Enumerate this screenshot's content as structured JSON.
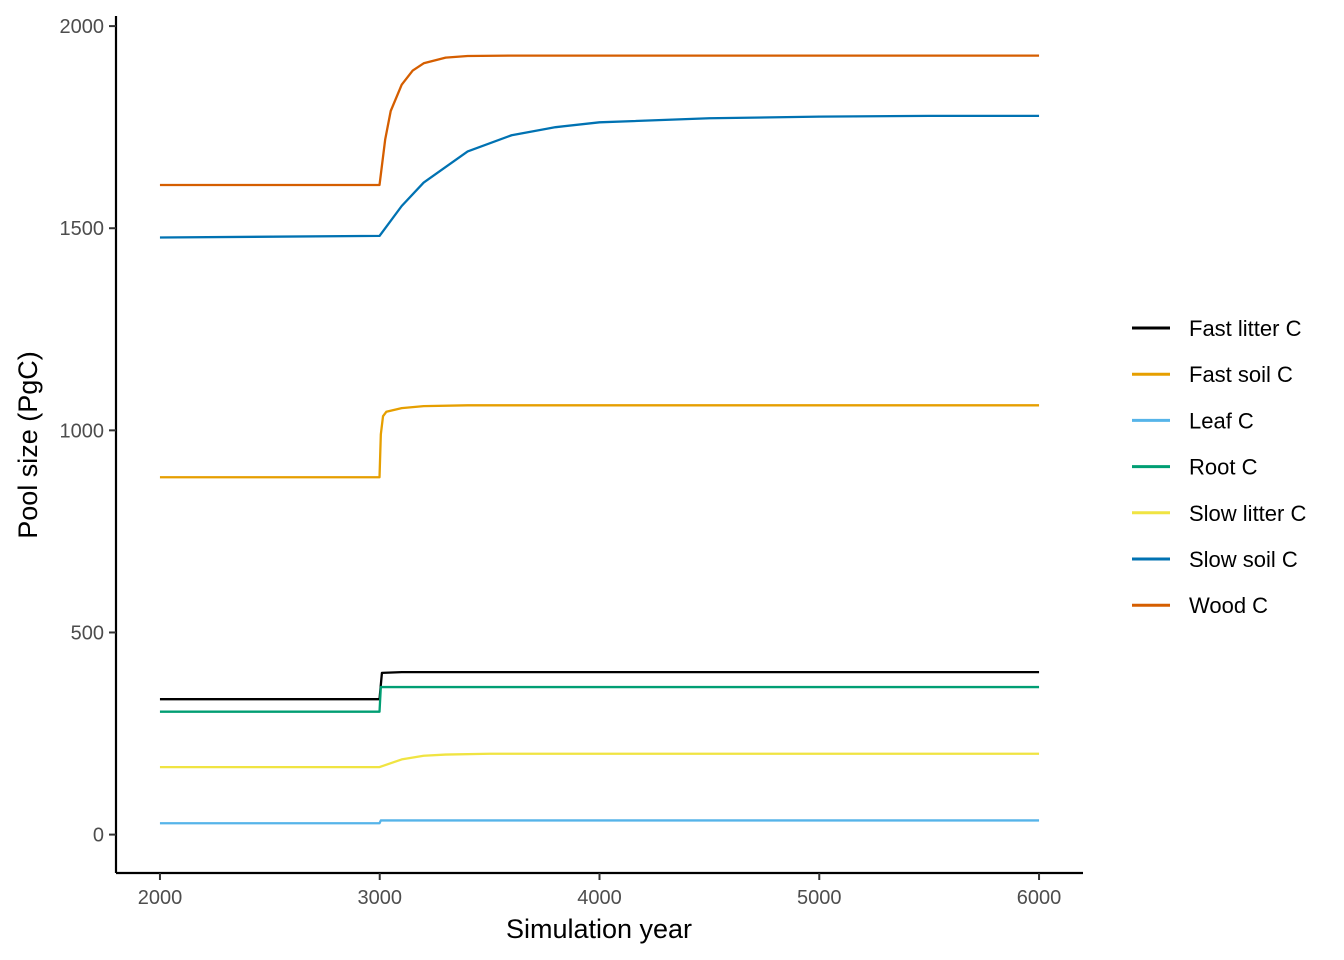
{
  "chart_data": {
    "type": "line",
    "title": "",
    "xlabel": "Simulation year",
    "ylabel": "Pool size (PgC)",
    "xlim": [
      1800,
      6200
    ],
    "ylim": [
      -95,
      2025
    ],
    "x_ticks": [
      2000,
      3000,
      4000,
      5000,
      6000
    ],
    "y_ticks": [
      0,
      500,
      1000,
      1500,
      2000
    ],
    "grid": false,
    "legend_position": "right",
    "series": [
      {
        "name": "Fast litter C",
        "color": "#000000",
        "points": [
          [
            2000,
            335
          ],
          [
            2999,
            335
          ],
          [
            3010,
            400
          ],
          [
            3100,
            402
          ],
          [
            6000,
            402
          ]
        ]
      },
      {
        "name": "Fast soil C",
        "color": "#E69F00",
        "points": [
          [
            2000,
            884
          ],
          [
            2999,
            884
          ],
          [
            3005,
            990
          ],
          [
            3015,
            1035
          ],
          [
            3030,
            1046
          ],
          [
            3100,
            1055
          ],
          [
            3200,
            1060
          ],
          [
            3400,
            1062
          ],
          [
            6000,
            1062
          ]
        ]
      },
      {
        "name": "Leaf C",
        "color": "#56B4E9",
        "points": [
          [
            2000,
            28
          ],
          [
            2999,
            28
          ],
          [
            3005,
            35
          ],
          [
            6000,
            35
          ]
        ]
      },
      {
        "name": "Root C",
        "color": "#009E73",
        "points": [
          [
            2000,
            304
          ],
          [
            2999,
            304
          ],
          [
            3005,
            365
          ],
          [
            6000,
            365
          ]
        ]
      },
      {
        "name": "Slow litter C",
        "color": "#F0E442",
        "points": [
          [
            2000,
            167
          ],
          [
            2999,
            167
          ],
          [
            3100,
            186
          ],
          [
            3200,
            195
          ],
          [
            3300,
            198
          ],
          [
            3500,
            200
          ],
          [
            6000,
            200
          ]
        ]
      },
      {
        "name": "Slow soil C",
        "color": "#0072B2",
        "points": [
          [
            2000,
            1477
          ],
          [
            2999,
            1481
          ],
          [
            3100,
            1555
          ],
          [
            3200,
            1613
          ],
          [
            3400,
            1690
          ],
          [
            3600,
            1730
          ],
          [
            3800,
            1750
          ],
          [
            4000,
            1762
          ],
          [
            4500,
            1772
          ],
          [
            5000,
            1776
          ],
          [
            5500,
            1778
          ],
          [
            6000,
            1778
          ]
        ]
      },
      {
        "name": "Wood C",
        "color": "#D55E00",
        "points": [
          [
            2000,
            1607
          ],
          [
            2999,
            1607
          ],
          [
            3025,
            1720
          ],
          [
            3050,
            1790
          ],
          [
            3100,
            1855
          ],
          [
            3150,
            1890
          ],
          [
            3200,
            1908
          ],
          [
            3300,
            1922
          ],
          [
            3400,
            1926
          ],
          [
            3600,
            1927
          ],
          [
            6000,
            1927
          ]
        ]
      }
    ]
  }
}
